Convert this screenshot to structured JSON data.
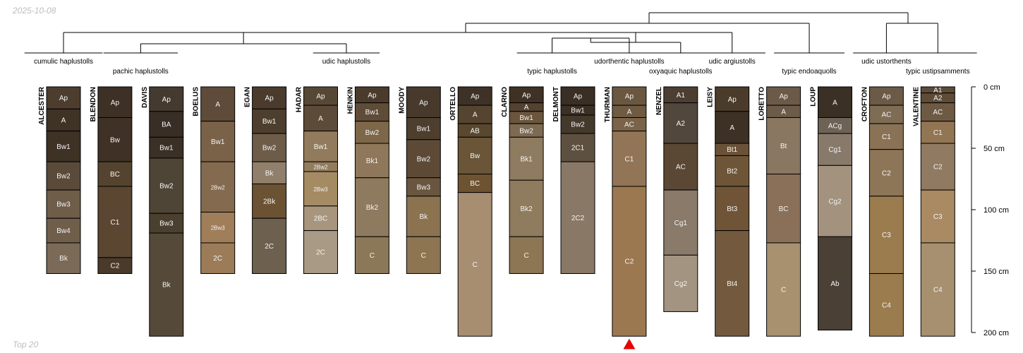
{
  "header": {
    "date": "2025-10-08"
  },
  "footer": {
    "caption": "Top 20"
  },
  "chart_data": {
    "type": "soil-profile-sketch",
    "depth_units": "cm",
    "depth_ticks": [
      {
        "value": 0,
        "label": "0 cm"
      },
      {
        "value": 50,
        "label": "50 cm"
      },
      {
        "value": 100,
        "label": "100 cm"
      },
      {
        "value": 150,
        "label": "150 cm"
      },
      {
        "value": 200,
        "label": "200 cm"
      }
    ],
    "profiles": [
      {
        "name": "ALCESTER",
        "horizons": [
          {
            "name": "Ap",
            "top": 0,
            "bottom": 18,
            "color": "#4c3d2e"
          },
          {
            "name": "A",
            "top": 18,
            "bottom": 36,
            "color": "#3f3326"
          },
          {
            "name": "Bw1",
            "top": 36,
            "bottom": 61,
            "color": "#3e3225"
          },
          {
            "name": "Bw2",
            "top": 61,
            "bottom": 84,
            "color": "#5a4a3a"
          },
          {
            "name": "Bw3",
            "top": 84,
            "bottom": 107,
            "color": "#6e5d49"
          },
          {
            "name": "Bw4",
            "top": 107,
            "bottom": 127,
            "color": "#6f5e4a"
          },
          {
            "name": "Bk",
            "top": 127,
            "bottom": 152,
            "color": "#7a6a57"
          }
        ]
      },
      {
        "name": "BLENDON",
        "horizons": [
          {
            "name": "Ap",
            "top": 0,
            "bottom": 25,
            "color": "#3d3024"
          },
          {
            "name": "Bw",
            "top": 25,
            "bottom": 61,
            "color": "#3f3125"
          },
          {
            "name": "BC",
            "top": 61,
            "bottom": 81,
            "color": "#54442f"
          },
          {
            "name": "C1",
            "top": 81,
            "bottom": 139,
            "color": "#5a4631"
          },
          {
            "name": "C2",
            "top": 139,
            "bottom": 152,
            "color": "#4a3a2a"
          }
        ]
      },
      {
        "name": "DAVIS",
        "horizons": [
          {
            "name": "Ap",
            "top": 0,
            "bottom": 20,
            "color": "#453a30"
          },
          {
            "name": "BA",
            "top": 20,
            "bottom": 41,
            "color": "#382e25"
          },
          {
            "name": "Bw1",
            "top": 41,
            "bottom": 58,
            "color": "#3a3025"
          },
          {
            "name": "Bw2",
            "top": 58,
            "bottom": 103,
            "color": "#4f4536"
          },
          {
            "name": "Bw3",
            "top": 103,
            "bottom": 119,
            "color": "#4b402f"
          },
          {
            "name": "Bk",
            "top": 119,
            "bottom": 203,
            "color": "#554a39"
          }
        ]
      },
      {
        "name": "BOELUS",
        "horizons": [
          {
            "name": "A",
            "top": 0,
            "bottom": 28,
            "color": "#5e4b39"
          },
          {
            "name": "Bw1",
            "top": 28,
            "bottom": 61,
            "color": "#7a6249"
          },
          {
            "name": "2Bw2",
            "top": 61,
            "bottom": 102,
            "color": "#846a4f"
          },
          {
            "name": "2Bw3",
            "top": 102,
            "bottom": 127,
            "color": "#a07e59"
          },
          {
            "name": "2C",
            "top": 127,
            "bottom": 152,
            "color": "#9c7c58"
          }
        ]
      },
      {
        "name": "EGAN",
        "horizons": [
          {
            "name": "Ap",
            "top": 0,
            "bottom": 18,
            "color": "#4a3b2c"
          },
          {
            "name": "Bw1",
            "top": 18,
            "bottom": 38,
            "color": "#4d3e2f"
          },
          {
            "name": "Bw2",
            "top": 38,
            "bottom": 61,
            "color": "#6d5c48"
          },
          {
            "name": "Bk",
            "top": 61,
            "bottom": 79,
            "color": "#8f7f6b"
          },
          {
            "name": "2Bk",
            "top": 79,
            "bottom": 107,
            "color": "#6b5232"
          },
          {
            "name": "2C",
            "top": 107,
            "bottom": 152,
            "color": "#6e604f"
          }
        ]
      },
      {
        "name": "HADAR",
        "horizons": [
          {
            "name": "Ap",
            "top": 0,
            "bottom": 15,
            "color": "#574835"
          },
          {
            "name": "A",
            "top": 15,
            "bottom": 36,
            "color": "#5b4b38"
          },
          {
            "name": "Bw1",
            "top": 36,
            "bottom": 61,
            "color": "#927b5d"
          },
          {
            "name": "2Bw2",
            "top": 61,
            "bottom": 69,
            "color": "#937c5e"
          },
          {
            "name": "2Bw3",
            "top": 69,
            "bottom": 97,
            "color": "#a58b63"
          },
          {
            "name": "2BC",
            "top": 97,
            "bottom": 117,
            "color": "#a7967d"
          },
          {
            "name": "2C",
            "top": 117,
            "bottom": 152,
            "color": "#a89a84"
          }
        ]
      },
      {
        "name": "HENKIN",
        "horizons": [
          {
            "name": "Ap",
            "top": 0,
            "bottom": 13,
            "color": "#4a3b2c"
          },
          {
            "name": "Bw1",
            "top": 13,
            "bottom": 28,
            "color": "#5e4c39"
          },
          {
            "name": "Bw2",
            "top": 28,
            "bottom": 46,
            "color": "#7e6749"
          },
          {
            "name": "Bk1",
            "top": 46,
            "bottom": 74,
            "color": "#8e775a"
          },
          {
            "name": "Bk2",
            "top": 74,
            "bottom": 122,
            "color": "#8d7a5f"
          },
          {
            "name": "C",
            "top": 122,
            "bottom": 152,
            "color": "#8a7859"
          }
        ]
      },
      {
        "name": "MOODY",
        "horizons": [
          {
            "name": "Ap",
            "top": 0,
            "bottom": 25,
            "color": "#473a2c"
          },
          {
            "name": "Bw1",
            "top": 25,
            "bottom": 43,
            "color": "#4d3e2e"
          },
          {
            "name": "Bw2",
            "top": 43,
            "bottom": 74,
            "color": "#5c4a37"
          },
          {
            "name": "Bw3",
            "top": 74,
            "bottom": 89,
            "color": "#6a563f"
          },
          {
            "name": "Bk",
            "top": 89,
            "bottom": 122,
            "color": "#8c7350"
          },
          {
            "name": "C",
            "top": 122,
            "bottom": 152,
            "color": "#8e7552"
          }
        ]
      },
      {
        "name": "ORTELLO",
        "horizons": [
          {
            "name": "Ap",
            "top": 0,
            "bottom": 15,
            "color": "#3e3226"
          },
          {
            "name": "A",
            "top": 15,
            "bottom": 30,
            "color": "#55442f"
          },
          {
            "name": "AB",
            "top": 30,
            "bottom": 41,
            "color": "#5a472f"
          },
          {
            "name": "Bw",
            "top": 41,
            "bottom": 71,
            "color": "#6a5538"
          },
          {
            "name": "BC",
            "top": 71,
            "bottom": 86,
            "color": "#6e5332"
          },
          {
            "name": "C",
            "top": 86,
            "bottom": 203,
            "color": "#a88e71"
          }
        ]
      },
      {
        "name": "CLARNO",
        "horizons": [
          {
            "name": "Ap",
            "top": 0,
            "bottom": 13,
            "color": "#3f3225"
          },
          {
            "name": "A",
            "top": 13,
            "bottom": 20,
            "color": "#544230"
          },
          {
            "name": "Bw1",
            "top": 20,
            "bottom": 30,
            "color": "#6b553d"
          },
          {
            "name": "Bw2",
            "top": 30,
            "bottom": 41,
            "color": "#7d6a52"
          },
          {
            "name": "Bk1",
            "top": 41,
            "bottom": 76,
            "color": "#8f7b5f"
          },
          {
            "name": "Bk2",
            "top": 76,
            "bottom": 122,
            "color": "#8f7b5d"
          },
          {
            "name": "C",
            "top": 122,
            "bottom": 152,
            "color": "#8c7654"
          }
        ]
      },
      {
        "name": "DELMONT",
        "horizons": [
          {
            "name": "Ap",
            "top": 0,
            "bottom": 15,
            "color": "#3a2f24"
          },
          {
            "name": "Bw1",
            "top": 15,
            "bottom": 23,
            "color": "#3c3024"
          },
          {
            "name": "Bw2",
            "top": 23,
            "bottom": 38,
            "color": "#45392c"
          },
          {
            "name": "2C1",
            "top": 38,
            "bottom": 61,
            "color": "#5e5040"
          },
          {
            "name": "2C2",
            "top": 61,
            "bottom": 152,
            "color": "#8a7866"
          }
        ]
      },
      {
        "name": "THURMAN",
        "horizons": [
          {
            "name": "Ap",
            "top": 0,
            "bottom": 15,
            "color": "#6b5740"
          },
          {
            "name": "A",
            "top": 15,
            "bottom": 25,
            "color": "#6f5a42"
          },
          {
            "name": "AC",
            "top": 25,
            "bottom": 36,
            "color": "#7a6348"
          },
          {
            "name": "C1",
            "top": 36,
            "bottom": 81,
            "color": "#927556"
          },
          {
            "name": "C2",
            "top": 81,
            "bottom": 203,
            "color": "#9b7850"
          }
        ]
      },
      {
        "name": "NENZEL",
        "horizons": [
          {
            "name": "A1",
            "top": 0,
            "bottom": 13,
            "color": "#4c3e31"
          },
          {
            "name": "A2",
            "top": 13,
            "bottom": 46,
            "color": "#52473d"
          },
          {
            "name": "AC",
            "top": 46,
            "bottom": 84,
            "color": "#5a4734"
          },
          {
            "name": "Cg1",
            "top": 84,
            "bottom": 137,
            "color": "#8a7a6a"
          },
          {
            "name": "Cg2",
            "top": 137,
            "bottom": 183,
            "color": "#a29480"
          }
        ]
      },
      {
        "name": "LEISY",
        "horizons": [
          {
            "name": "Ap",
            "top": 0,
            "bottom": 20,
            "color": "#4a3b2b"
          },
          {
            "name": "A",
            "top": 20,
            "bottom": 46,
            "color": "#3d3024"
          },
          {
            "name": "Bt1",
            "top": 46,
            "bottom": 56,
            "color": "#6a5239"
          },
          {
            "name": "Bt2",
            "top": 56,
            "bottom": 81,
            "color": "#6e5538"
          },
          {
            "name": "Bt3",
            "top": 81,
            "bottom": 117,
            "color": "#6f5438"
          },
          {
            "name": "Bt4",
            "top": 117,
            "bottom": 203,
            "color": "#735a3e"
          }
        ]
      },
      {
        "name": "LORETTO",
        "horizons": [
          {
            "name": "Ap",
            "top": 0,
            "bottom": 15,
            "color": "#6b5a48"
          },
          {
            "name": "A",
            "top": 15,
            "bottom": 25,
            "color": "#6c5b48"
          },
          {
            "name": "Bt",
            "top": 25,
            "bottom": 71,
            "color": "#8a7761"
          },
          {
            "name": "BC",
            "top": 71,
            "bottom": 127,
            "color": "#8a7059"
          },
          {
            "name": "C",
            "top": 127,
            "bottom": 203,
            "color": "#a8916f"
          }
        ]
      },
      {
        "name": "LOUP",
        "horizons": [
          {
            "name": "A",
            "top": 0,
            "bottom": 25,
            "color": "#3b3025"
          },
          {
            "name": "ACg",
            "top": 25,
            "bottom": 38,
            "color": "#6d6254"
          },
          {
            "name": "Cg1",
            "top": 38,
            "bottom": 64,
            "color": "#877a6b"
          },
          {
            "name": "Cg2",
            "top": 64,
            "bottom": 122,
            "color": "#a2927e"
          },
          {
            "name": "Ab",
            "top": 122,
            "bottom": 198,
            "color": "#4b4036"
          }
        ]
      },
      {
        "name": "CROFTON",
        "horizons": [
          {
            "name": "Ap",
            "top": 0,
            "bottom": 15,
            "color": "#6b5a46"
          },
          {
            "name": "AC",
            "top": 15,
            "bottom": 30,
            "color": "#7f6c55"
          },
          {
            "name": "C1",
            "top": 30,
            "bottom": 51,
            "color": "#8a7256"
          },
          {
            "name": "C2",
            "top": 51,
            "bottom": 89,
            "color": "#8d7658"
          },
          {
            "name": "C3",
            "top": 89,
            "bottom": 152,
            "color": "#9b7c4f"
          },
          {
            "name": "C4",
            "top": 152,
            "bottom": 203,
            "color": "#9b7c4f"
          }
        ]
      },
      {
        "name": "VALENTINE",
        "horizons": [
          {
            "name": "A1",
            "top": 0,
            "bottom": 5,
            "color": "#5e4b37"
          },
          {
            "name": "A2",
            "top": 5,
            "bottom": 13,
            "color": "#5f4c37"
          },
          {
            "name": "AC",
            "top": 13,
            "bottom": 28,
            "color": "#6e5a43"
          },
          {
            "name": "C1",
            "top": 28,
            "bottom": 46,
            "color": "#927553"
          },
          {
            "name": "C2",
            "top": 46,
            "bottom": 84,
            "color": "#907a62"
          },
          {
            "name": "C3",
            "top": 84,
            "bottom": 127,
            "color": "#a98a62"
          },
          {
            "name": "C4",
            "top": 127,
            "bottom": 203,
            "color": "#a6906f"
          }
        ]
      }
    ],
    "taxa": [
      {
        "name": "cumulic haplustolls",
        "members": [
          "ALCESTER"
        ]
      },
      {
        "name": "pachic haplustolls",
        "members": [
          "BLENDON",
          "DAVIS"
        ]
      },
      {
        "name": "udic haplustolls",
        "members": [
          "BOELUS",
          "EGAN",
          "HADAR",
          "HENKIN",
          "MOODY",
          "ORTELLO"
        ]
      },
      {
        "name": "typic haplustolls",
        "members": [
          "CLARNO",
          "DELMONT"
        ]
      },
      {
        "name": "udorthentic haplustolls",
        "members": [
          "THURMAN"
        ]
      },
      {
        "name": "oxyaquic haplustolls",
        "members": [
          "NENZEL"
        ]
      },
      {
        "name": "udic argiustolls",
        "members": [
          "LEISY"
        ]
      },
      {
        "name": "typic endoaquolls",
        "members": [
          "LORETTO",
          "LOUP"
        ]
      },
      {
        "name": "udic ustorthents",
        "members": [
          "CROFTON"
        ]
      },
      {
        "name": "typic ustipsamments",
        "members": [
          "VALENTINE"
        ]
      }
    ],
    "highlighted_profile": "THURMAN"
  }
}
